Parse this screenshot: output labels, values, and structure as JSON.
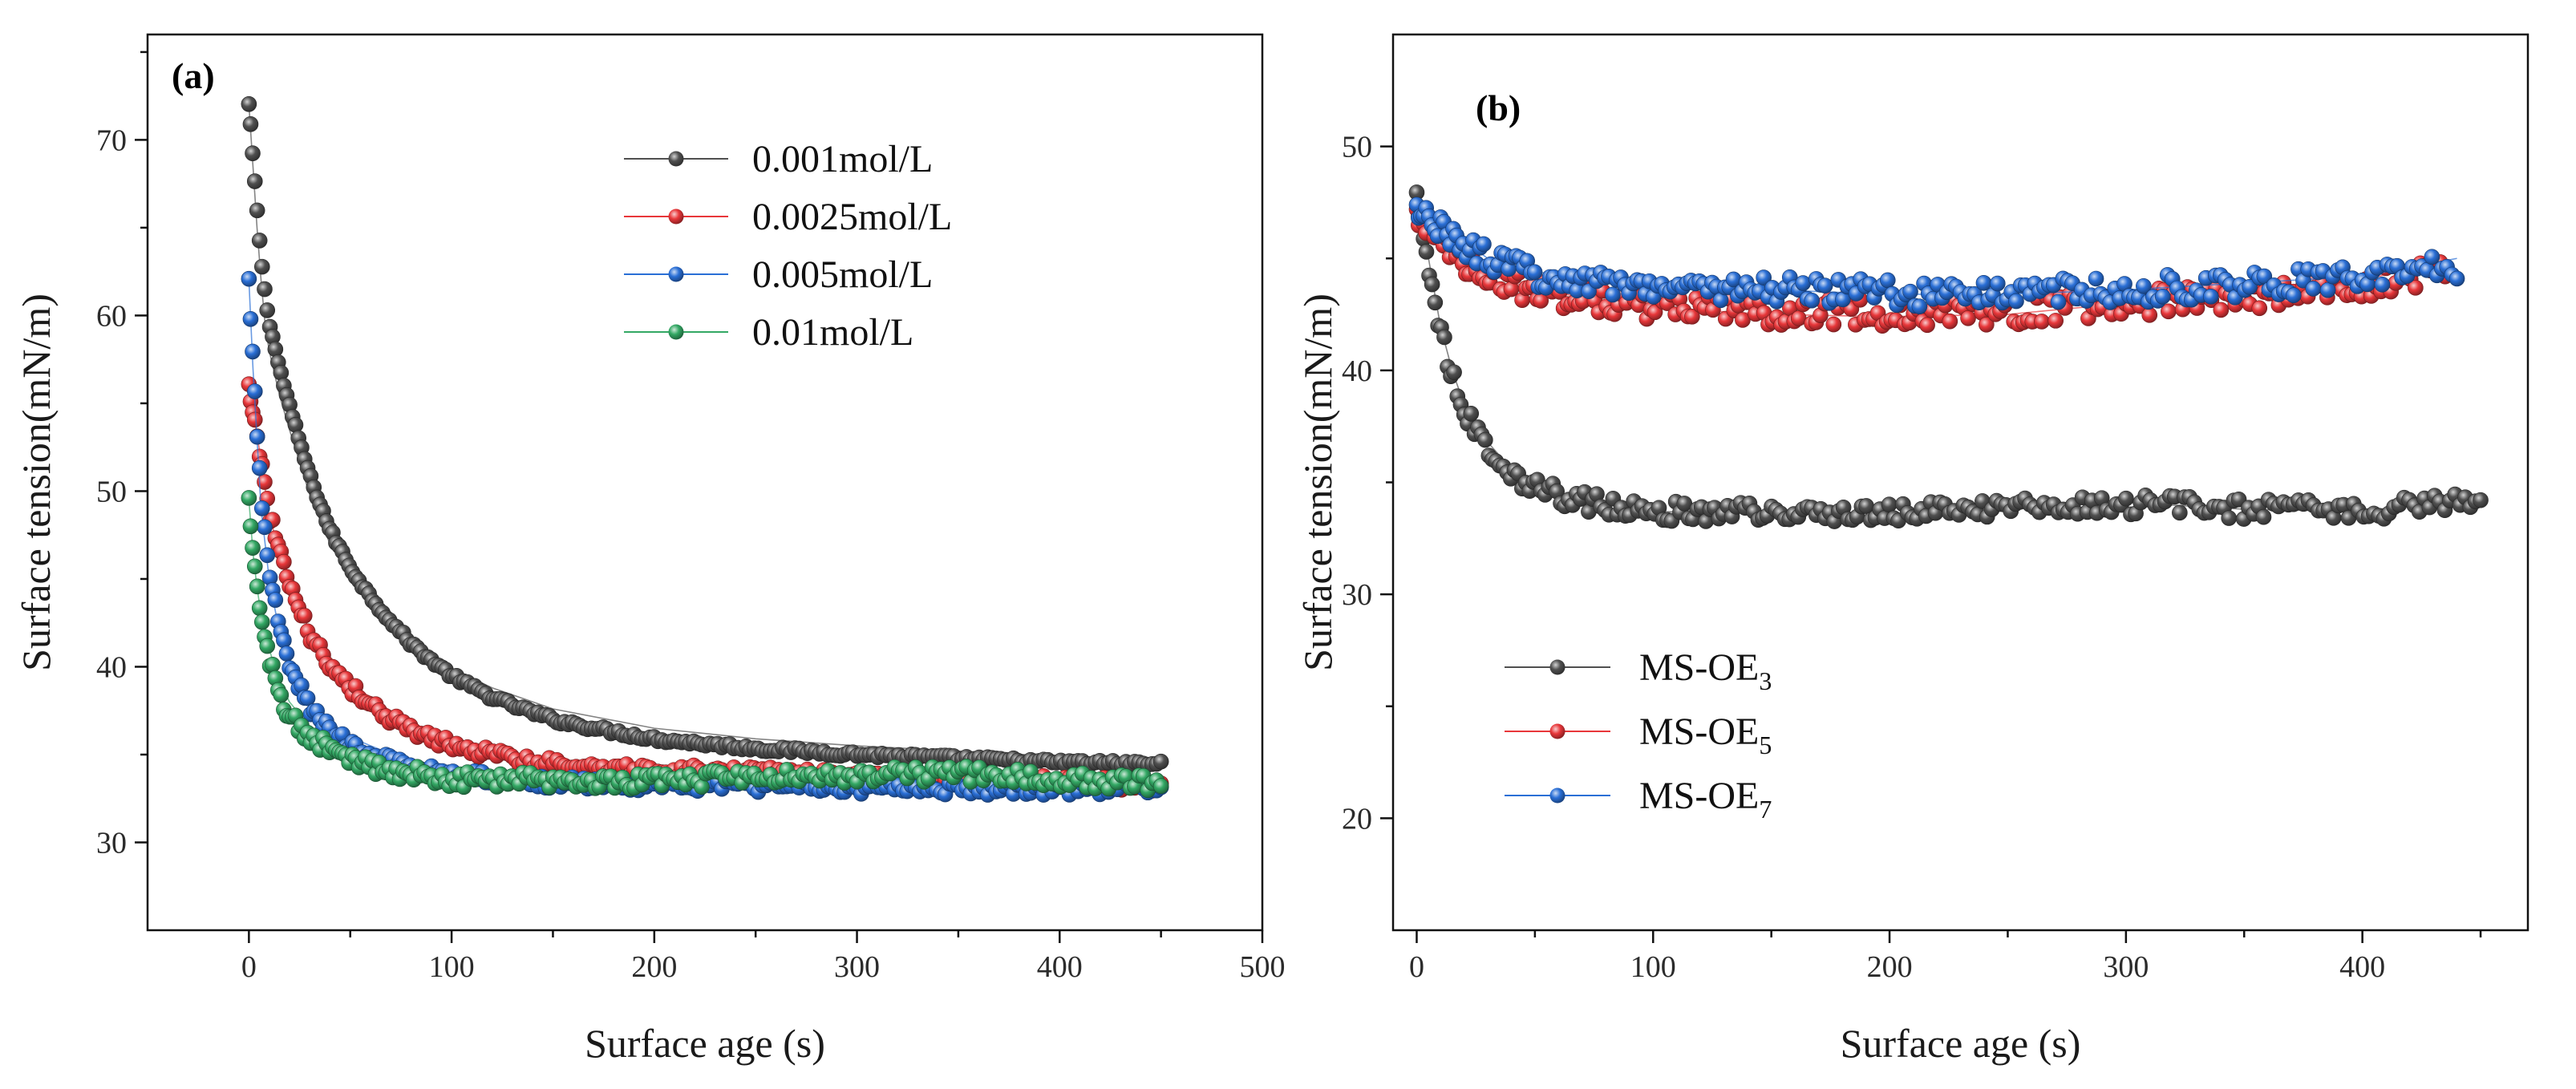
{
  "chart_data": [
    {
      "type": "scatter",
      "panel_label": "(a)",
      "xlabel": "Surface age (s)",
      "ylabel": "Surface tension(mN/m)",
      "xlim": [
        -50,
        500
      ],
      "ylim": [
        25,
        76
      ],
      "xticks": [
        0,
        100,
        200,
        300,
        400,
        500
      ],
      "xtick_labels": [
        "0",
        "100",
        "200",
        "300",
        "400",
        "500"
      ],
      "yticks": [
        30,
        40,
        50,
        60,
        70
      ],
      "ytick_labels": [
        "30",
        "40",
        "50",
        "60",
        "70"
      ],
      "legend_position": "top-right",
      "series": [
        {
          "name": "0.001mol/L",
          "color": "#505050",
          "gamma0": 72.0,
          "gamma_inf": 33.5,
          "tau": 48,
          "noise": 0.15,
          "x": [
            0,
            2,
            4,
            6,
            8,
            10,
            15,
            20,
            30,
            40,
            50,
            60,
            80,
            100,
            120,
            150,
            200,
            250,
            300,
            350,
            400,
            450
          ],
          "values": [
            72.0,
            68.5,
            65.0,
            62.0,
            59.5,
            58.0,
            55.5,
            53.5,
            49.8,
            47.0,
            45.2,
            43.8,
            41.5,
            39.9,
            38.8,
            37.6,
            36.5,
            35.9,
            35.5,
            35.2,
            34.9,
            34.8
          ]
        },
        {
          "name": "0.0025mol/L",
          "color": "#e8373a",
          "gamma0": 56.0,
          "gamma_inf": 33.8,
          "tau": 28,
          "noise": 0.35,
          "x": [
            0,
            5,
            10,
            20,
            30,
            40,
            50,
            60,
            80,
            100,
            120,
            150,
            200,
            250,
            300,
            350,
            400,
            450
          ],
          "values": [
            56.0,
            52.5,
            48.5,
            45.0,
            42.0,
            40.5,
            39.3,
            38.2,
            36.8,
            35.9,
            35.4,
            34.6,
            34.2,
            34.0,
            33.7,
            33.5,
            33.3,
            33.0
          ]
        },
        {
          "name": "0.005mol/L",
          "color": "#2a6fd6",
          "gamma0": 62.0,
          "gamma_inf": 33.2,
          "tau": 14,
          "noise": 0.35,
          "x": [
            0,
            2,
            4,
            6,
            10,
            15,
            20,
            30,
            40,
            50,
            60,
            80,
            100,
            150,
            200,
            250,
            300,
            350,
            400,
            450
          ],
          "values": [
            62.0,
            57.0,
            53.0,
            49.0,
            45.0,
            42.0,
            40.2,
            38.0,
            36.9,
            36.0,
            35.5,
            34.6,
            34.0,
            33.5,
            33.3,
            33.2,
            33.1,
            33.0,
            33.0,
            33.1
          ]
        },
        {
          "name": "0.01mol/L",
          "color": "#33a864",
          "gamma0": 49.5,
          "gamma_inf": 33.6,
          "tau": 9,
          "noise": 0.45,
          "x": [
            0,
            2,
            4,
            6,
            10,
            15,
            20,
            30,
            40,
            50,
            60,
            80,
            100,
            150,
            200,
            250,
            300,
            350,
            400,
            450
          ],
          "values": [
            49.5,
            46.5,
            44.5,
            43.0,
            41.0,
            39.2,
            38.0,
            36.6,
            35.8,
            35.2,
            34.6,
            34.0,
            33.6,
            33.5,
            33.4,
            33.8,
            33.9,
            34.0,
            33.6,
            33.3
          ]
        }
      ]
    },
    {
      "type": "scatter",
      "panel_label": "(b)",
      "xlabel": "Surface age (s)",
      "ylabel": "Surface tension(mN/m)",
      "xlim": [
        -10,
        470
      ],
      "ylim": [
        15,
        55
      ],
      "xticks": [
        0,
        100,
        200,
        300,
        400
      ],
      "xtick_labels": [
        "0",
        "100",
        "200",
        "300",
        "400"
      ],
      "yticks": [
        20,
        30,
        40,
        50
      ],
      "ytick_labels": [
        "20",
        "30",
        "40",
        "50"
      ],
      "legend_position": "bottom-left",
      "series": [
        {
          "name": "MS-OE",
          "subscript": "3",
          "color": "#505050",
          "gamma0": 47.8,
          "gamma_inf": 33.8,
          "tau": 16,
          "noise": 0.45,
          "x": [
            0,
            5,
            10,
            15,
            20,
            30,
            40,
            50,
            60,
            80,
            100,
            150,
            200,
            250,
            300,
            350,
            400,
            450
          ],
          "values": [
            47.8,
            45.0,
            42.0,
            40.0,
            38.5,
            36.8,
            35.6,
            35.0,
            34.5,
            34.0,
            33.7,
            33.6,
            33.6,
            33.9,
            34.1,
            33.8,
            33.7,
            34.4
          ]
        },
        {
          "name": "MS-OE",
          "subscript": "5",
          "color": "#e8373a",
          "gamma0": 47.0,
          "gamma_inf": 43.0,
          "tau": 22,
          "noise": 0.6,
          "x": [
            0,
            10,
            20,
            30,
            50,
            100,
            150,
            200,
            250,
            300,
            350,
            400,
            435
          ],
          "values": [
            47.0,
            46.0,
            45.0,
            44.3,
            43.6,
            42.8,
            42.5,
            42.4,
            42.5,
            43.0,
            43.4,
            44.0,
            45.0
          ]
        },
        {
          "name": "MS-OE",
          "subscript": "7",
          "color": "#2a6fd6",
          "gamma0": 47.2,
          "gamma_inf": 43.6,
          "tau": 25,
          "noise": 0.6,
          "x": [
            0,
            10,
            20,
            30,
            50,
            100,
            150,
            200,
            250,
            300,
            350,
            400,
            440
          ],
          "values": [
            47.2,
            46.5,
            45.8,
            45.0,
            44.4,
            43.8,
            43.6,
            43.4,
            43.4,
            43.6,
            43.9,
            44.2,
            45.0
          ]
        }
      ]
    }
  ]
}
